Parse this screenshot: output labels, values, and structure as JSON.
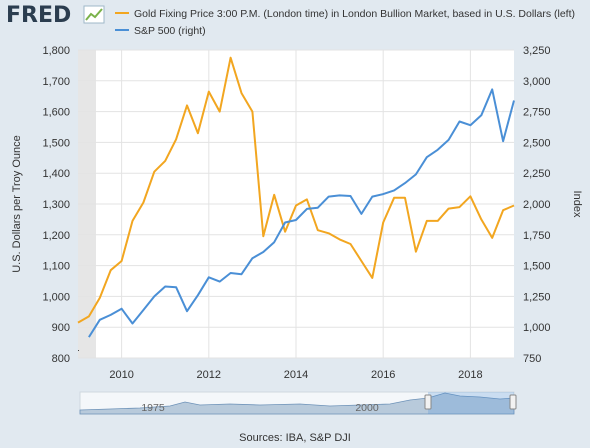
{
  "header": {
    "logo": "FRED",
    "logo_icon": "line-graph-icon"
  },
  "legend": {
    "placement": "top",
    "entries": [
      {
        "label": "Gold Fixing Price 3:00 P.M. (London time) in London Bullion Market, based in U.S. Dollars (left)",
        "color": "#f2a620"
      },
      {
        "label": "S&P 500 (right)",
        "color": "#4a8fd6"
      }
    ]
  },
  "footer": {
    "sources": "Sources: IBA, S&P DJI"
  },
  "navigator": {
    "labels": [
      "1975",
      "2000"
    ]
  },
  "chart_data": {
    "type": "line",
    "title": "",
    "xlabel": "",
    "ylabel_left": "U.S. Dollars per Troy Ounce",
    "ylabel_right": "Index",
    "x_ticks": [
      "2010",
      "2012",
      "2014",
      "2016",
      "2018"
    ],
    "x_tick_values": [
      2010,
      2012,
      2014,
      2016,
      2018
    ],
    "xlim": [
      2009.0,
      2019.0
    ],
    "ylim_left": [
      800,
      1800
    ],
    "ylim_right": [
      750,
      3250
    ],
    "left_ticks": [
      "800",
      "900",
      "1,000",
      "1,100",
      "1,200",
      "1,300",
      "1,400",
      "1,500",
      "1,600",
      "1,700",
      "1,800"
    ],
    "left_tick_values": [
      800,
      900,
      1000,
      1100,
      1200,
      1300,
      1400,
      1500,
      1600,
      1700,
      1800
    ],
    "right_ticks": [
      "750",
      "1,000",
      "1,250",
      "1,500",
      "1,750",
      "2,000",
      "2,250",
      "2,500",
      "2,750",
      "3,000",
      "3,250"
    ],
    "right_tick_values": [
      750,
      1000,
      1250,
      1500,
      1750,
      2000,
      2250,
      2500,
      2750,
      3000,
      3250
    ],
    "grid": true,
    "series": [
      {
        "name": "Gold Fixing Price 3:00 P.M. (London time) in London Bullion Market, based in U.S. Dollars (left)",
        "axis": "left",
        "color": "#f2a620",
        "x": [
          2009.0,
          2009.25,
          2009.5,
          2009.75,
          2010.0,
          2010.25,
          2010.5,
          2010.75,
          2011.0,
          2011.25,
          2011.5,
          2011.75,
          2012.0,
          2012.25,
          2012.5,
          2012.75,
          2013.0,
          2013.25,
          2013.5,
          2013.75,
          2014.0,
          2014.25,
          2014.5,
          2014.75,
          2015.0,
          2015.25,
          2015.5,
          2015.75,
          2016.0,
          2016.25,
          2016.5,
          2016.75,
          2017.0,
          2017.25,
          2017.5,
          2017.75,
          2018.0,
          2018.25,
          2018.5,
          2018.75,
          2019.0
        ],
        "y": [
          915,
          935,
          995,
          1085,
          1115,
          1245,
          1305,
          1405,
          1440,
          1510,
          1620,
          1530,
          1665,
          1600,
          1775,
          1660,
          1600,
          1195,
          1330,
          1210,
          1295,
          1315,
          1215,
          1205,
          1185,
          1170,
          1115,
          1060,
          1240,
          1320,
          1320,
          1145,
          1245,
          1245,
          1285,
          1290,
          1325,
          1250,
          1190,
          1280,
          1295
        ]
      },
      {
        "name": "S&P 500 (right)",
        "axis": "right",
        "color": "#4a8fd6",
        "x": [
          2009.25,
          2009.5,
          2009.75,
          2010.0,
          2010.25,
          2010.5,
          2010.75,
          2011.0,
          2011.25,
          2011.5,
          2011.75,
          2012.0,
          2012.25,
          2012.5,
          2012.75,
          2013.0,
          2013.25,
          2013.5,
          2013.75,
          2014.0,
          2014.25,
          2014.5,
          2014.75,
          2015.0,
          2015.25,
          2015.5,
          2015.75,
          2016.0,
          2016.25,
          2016.5,
          2016.75,
          2017.0,
          2017.25,
          2017.5,
          2017.75,
          2018.0,
          2018.25,
          2018.5,
          2018.75,
          2019.0
        ],
        "y": [
          920,
          1060,
          1100,
          1150,
          1030,
          1140,
          1250,
          1330,
          1325,
          1130,
          1260,
          1405,
          1370,
          1440,
          1430,
          1560,
          1610,
          1690,
          1850,
          1870,
          1960,
          1970,
          2060,
          2070,
          2065,
          1920,
          2060,
          2080,
          2110,
          2170,
          2240,
          2380,
          2440,
          2520,
          2670,
          2640,
          2720,
          2930,
          2510,
          2840
        ]
      }
    ]
  }
}
